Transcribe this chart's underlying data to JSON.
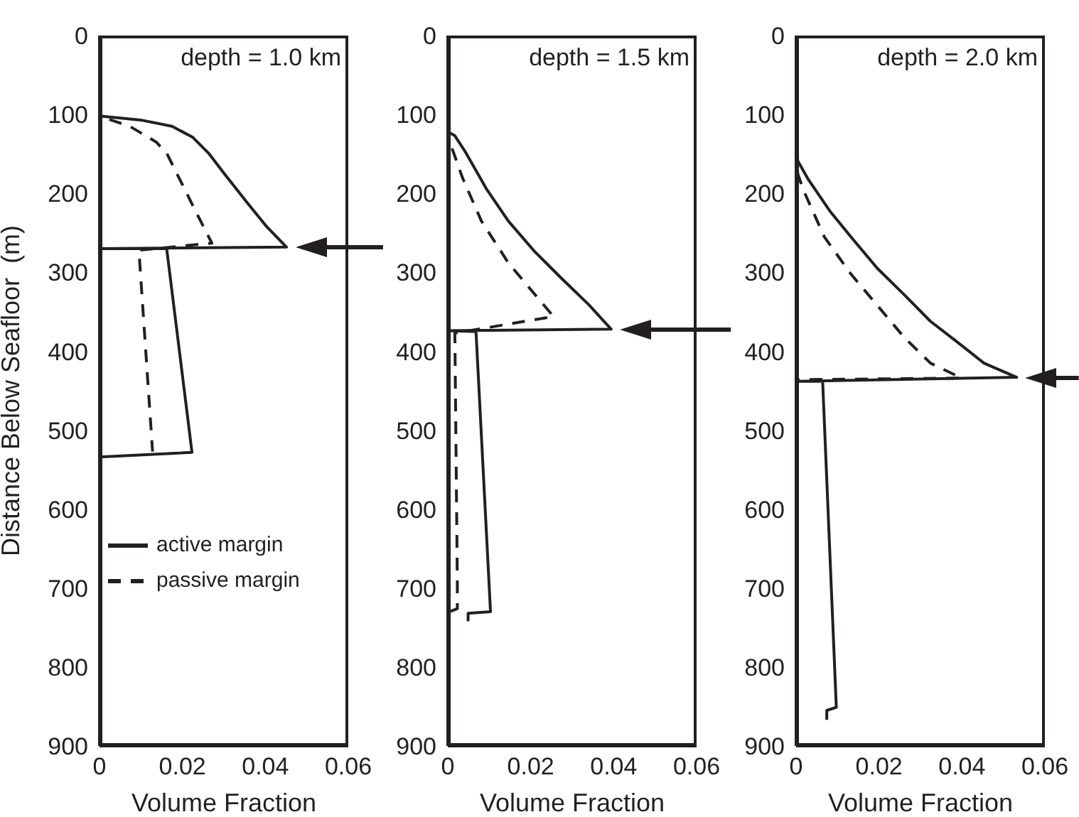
{
  "chart_data": [
    {
      "type": "line",
      "title": "depth = 1.0 km",
      "xlabel": "Volume Fraction",
      "ylabel": "Distance Below Seafloor  (m)",
      "xlim": [
        0,
        0.06
      ],
      "xticks": [
        0,
        0.02,
        0.04,
        0.06
      ],
      "ylim": [
        900,
        0
      ],
      "yticks": [
        0,
        100,
        200,
        300,
        400,
        500,
        600,
        700,
        800,
        900
      ],
      "legend": "bottom left",
      "grid": false,
      "marker": "none",
      "series": [
        {
          "name": "active margin",
          "color": "#231f20",
          "line_style": "solid",
          "x": [
            0,
            0,
            0.0099,
            0.0175,
            0.0225,
            0.0263,
            0.0301,
            0.0352,
            0.0403,
            0.0451,
            0,
            0.0162,
            0.0223,
            0
          ],
          "values": [
            0,
            102,
            107,
            115,
            129,
            149,
            175,
            209,
            242,
            268,
            270,
            270,
            528,
            534
          ]
        },
        {
          "name": "passive margin",
          "color": "#231f20",
          "line_style": "dashed",
          "x": [
            0,
            0,
            0.0073,
            0.0137,
            0.0162,
            0.02,
            0.0238,
            0.0271,
            0.0095,
            0.0128
          ],
          "values": [
            0,
            102,
            115,
            135,
            149,
            189,
            229,
            263,
            272,
            527
          ]
        }
      ]
    },
    {
      "type": "line",
      "title": "depth = 1.5 km",
      "xlabel": "Volume Fraction",
      "xlim": [
        0,
        0.06
      ],
      "xticks": [
        0,
        0.02,
        0.04,
        0.06
      ],
      "ylim": [
        900,
        0
      ],
      "yticks": [
        0,
        100,
        200,
        300,
        400,
        500,
        600,
        700,
        800,
        900
      ],
      "grid": false,
      "marker": "none",
      "series": [
        {
          "color": "#231f20",
          "line_style": "solid",
          "x": [
            0,
            0,
            0.0017,
            0.0043,
            0.0094,
            0.0146,
            0.021,
            0.0275,
            0.034,
            0.0394,
            0,
            0.0068,
            0.0103,
            0.0049,
            0.0049
          ],
          "values": [
            0,
            122,
            127,
            148,
            195,
            235,
            274,
            308,
            341,
            372,
            374,
            375,
            730,
            732,
            742
          ]
        },
        {
          "color": "#231f20",
          "line_style": "dashed",
          "x": [
            0,
            0,
            0.0036,
            0.0081,
            0.0146,
            0.021,
            0.0255,
            0.0017,
            0.0023,
            0.0023,
            0,
            0
          ],
          "values": [
            0,
            128,
            181,
            235,
            288,
            328,
            356,
            377,
            693,
            726,
            731,
            775
          ]
        }
      ]
    },
    {
      "type": "line",
      "title": "depth = 2.0 km",
      "xlabel": "Volume Fraction",
      "xlim": [
        0,
        0.06
      ],
      "xticks": [
        0,
        0.02,
        0.04,
        0.06
      ],
      "ylim": [
        900,
        0
      ],
      "yticks": [
        0,
        100,
        200,
        300,
        400,
        500,
        600,
        700,
        800,
        900
      ],
      "grid": false,
      "marker": "none",
      "series": [
        {
          "color": "#231f20",
          "line_style": "solid",
          "x": [
            0,
            0,
            0.0029,
            0.0081,
            0.0132,
            0.0196,
            0.026,
            0.0324,
            0.0388,
            0.0453,
            0.0532,
            0,
            0.0064,
            0.0097,
            0.0074,
            0.0074
          ],
          "values": [
            0,
            155,
            182,
            222,
            255,
            295,
            328,
            362,
            388,
            415,
            433,
            438,
            438,
            851,
            855,
            867
          ]
        },
        {
          "color": "#231f20",
          "line_style": "dashed",
          "x": [
            0,
            0.0004,
            0.0017,
            0.0068,
            0.0132,
            0.0196,
            0.026,
            0.0324,
            0.0399,
            0,
            0
          ],
          "values": [
            0,
            175,
            195,
            255,
            302,
            342,
            382,
            415,
            434,
            436,
            861
          ]
        }
      ]
    }
  ]
}
